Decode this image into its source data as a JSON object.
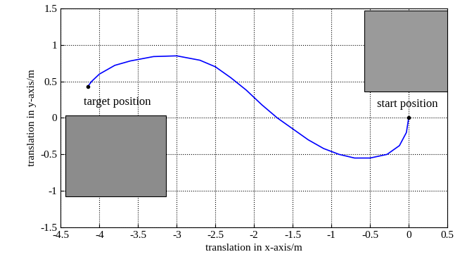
{
  "chart_data": {
    "type": "line",
    "x_label": "translation in x-axis/m",
    "y_label": "translation in y-axis/m",
    "annotations": [
      "target position",
      "start position"
    ],
    "x": [
      0,
      -0.03,
      -0.12,
      -0.28,
      -0.5,
      -0.7,
      -0.9,
      -1.1,
      -1.3,
      -1.5,
      -1.7,
      -1.9,
      -2.1,
      -2.3,
      -2.5,
      -2.7,
      -3.0,
      -3.3,
      -3.6,
      -3.8,
      -4.0,
      -4.1,
      -4.15
    ],
    "values": [
      0,
      -0.2,
      -0.38,
      -0.5,
      -0.55,
      -0.55,
      -0.5,
      -0.42,
      -0.3,
      -0.15,
      0.0,
      0.18,
      0.38,
      0.55,
      0.7,
      0.79,
      0.85,
      0.84,
      0.78,
      0.72,
      0.6,
      0.5,
      0.43
    ],
    "color": "#0000ff",
    "xlim": [
      -4.5,
      0.5
    ],
    "ylim": [
      -1.5,
      1.5
    ],
    "xticks": [
      -4.5,
      -4,
      -3.5,
      -3,
      -2.5,
      -2,
      -1.5,
      -1,
      -0.5,
      0,
      0.5
    ],
    "yticks": [
      -1.5,
      -1,
      -0.5,
      0,
      0.5,
      1,
      1.5
    ],
    "grid": true
  }
}
